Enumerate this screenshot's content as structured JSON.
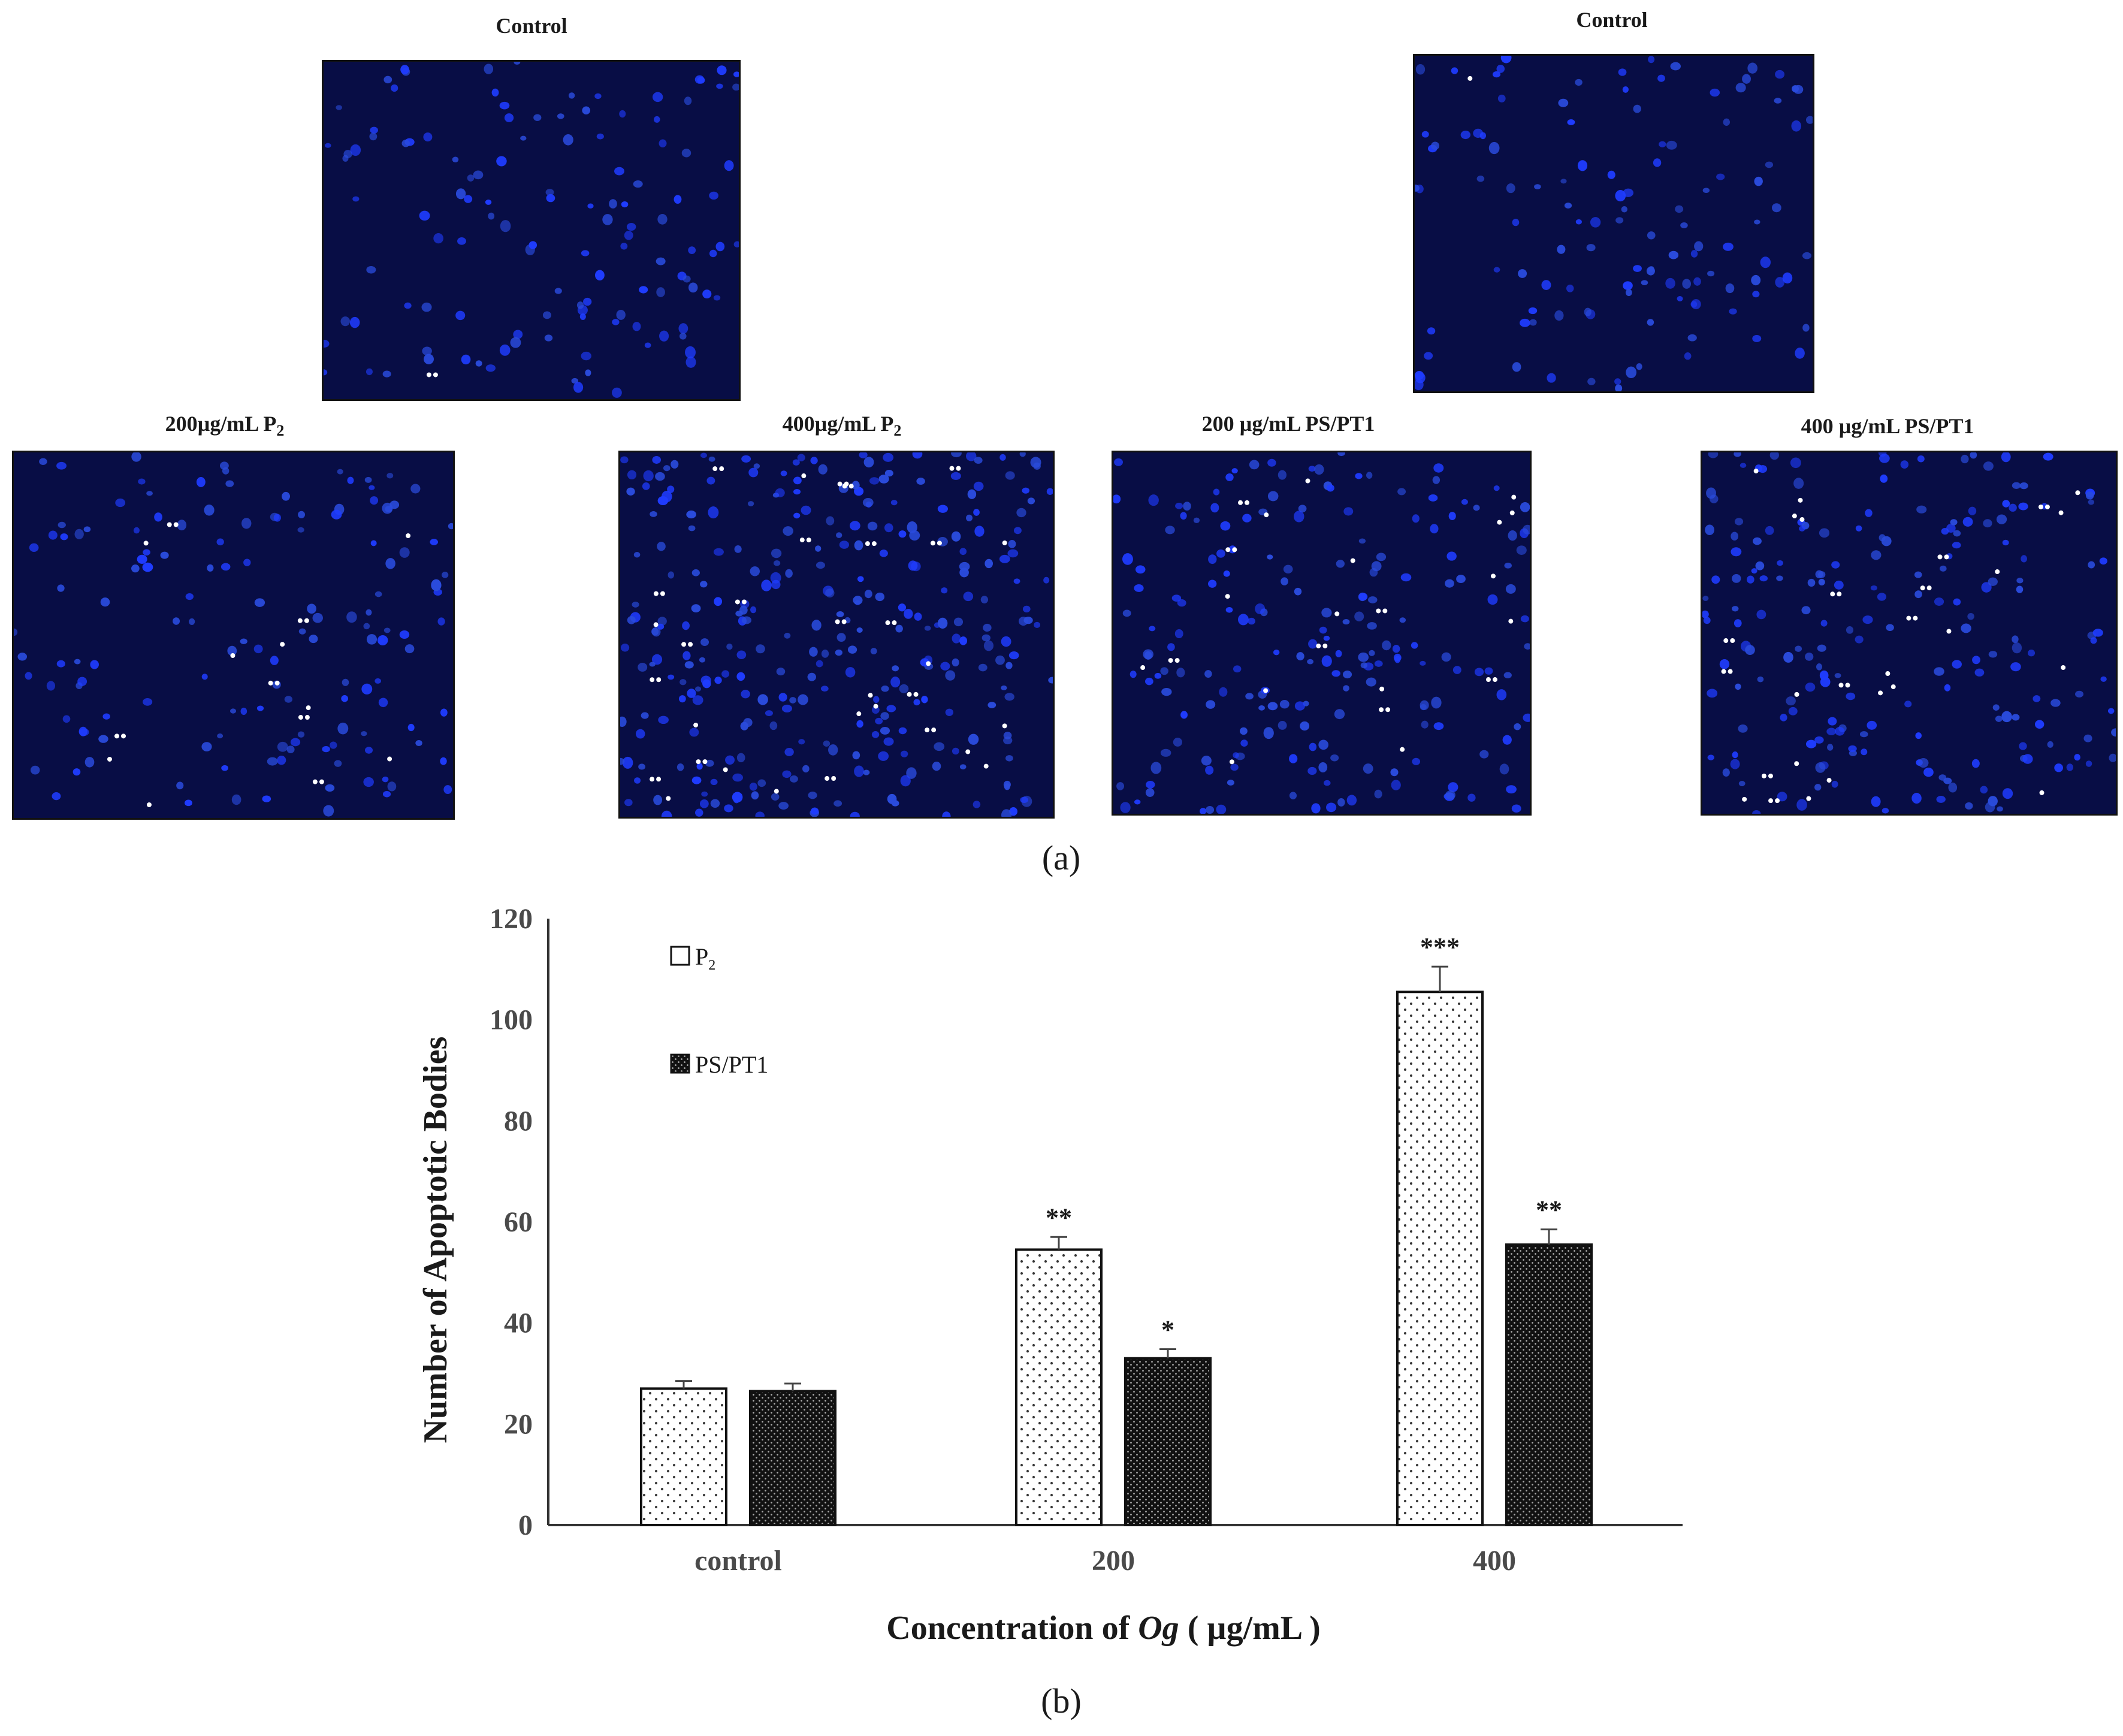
{
  "figure": {
    "panel_a_label": "(a)",
    "panel_b_label": "(b)",
    "micrographs": [
      {
        "label": "Control",
        "label_sub": "",
        "label_tail": "",
        "dots": 1,
        "density": 1.0
      },
      {
        "label": "Control",
        "label_sub": "",
        "label_tail": "",
        "dots": 1,
        "density": 1.0
      },
      {
        "label": "200µg/mL P",
        "label_sub": "2",
        "label_tail": "",
        "dots": 14,
        "density": 1.0
      },
      {
        "label": "400µg/mL P",
        "label_sub": "2",
        "label_tail": "",
        "dots": 32,
        "density": 2.2
      },
      {
        "label": "200 µg/mL PS/PT1",
        "label_sub": "",
        "label_tail": "",
        "dots": 22,
        "density": 1.5
      },
      {
        "label": "400 µg/mL PS/PT1",
        "label_sub": "",
        "label_tail": "",
        "dots": 28,
        "density": 1.5
      }
    ]
  },
  "chart_data": {
    "type": "bar",
    "categories": [
      "control",
      "200",
      "400"
    ],
    "series": [
      {
        "name": "P",
        "name_sub": "2",
        "pattern": "sparse-dots",
        "values": [
          27,
          54.5,
          105.5
        ],
        "errors": [
          1.5,
          2.5,
          5
        ],
        "significance": [
          "",
          "**",
          "***"
        ]
      },
      {
        "name": "PS/PT1",
        "name_sub": "",
        "pattern": "dense-dots",
        "values": [
          26.5,
          33,
          55.5
        ],
        "errors": [
          1.5,
          1.8,
          3
        ],
        "significance": [
          "",
          "*",
          "**"
        ]
      }
    ],
    "ylim": [
      0,
      120
    ],
    "yticks": [
      0,
      20,
      40,
      60,
      80,
      100,
      120
    ],
    "xlabel_pre": "Concentration of ",
    "xlabel_italic": "Og",
    "xlabel_post": " ( µg/mL )",
    "ylabel": "Number of Apoptotic Bodies",
    "legend_position": "top-left",
    "grid": false
  }
}
